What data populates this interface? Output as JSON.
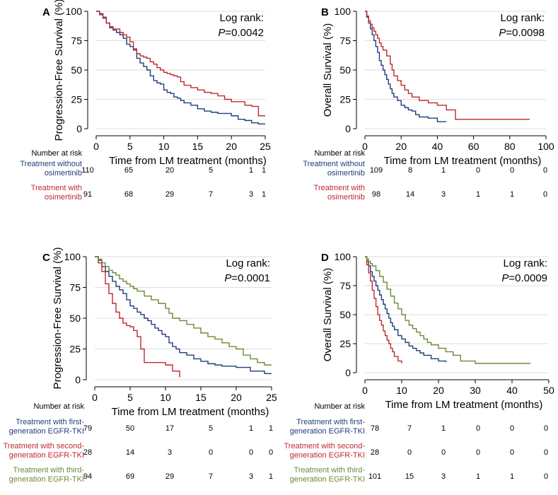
{
  "colors": {
    "blue": "#1f3d7a",
    "red": "#c0282d",
    "green": "#6b8a3a",
    "axis": "#000000",
    "grid": "#dddddd"
  },
  "number_at_risk_label": "Number at risk",
  "chart_data": [
    {
      "type": "line",
      "panel_label": "A",
      "ylabel": "Progression-Free Survival (%)",
      "xlabel": "Time from LM treatment (months)",
      "annotation": {
        "line1": "Log rank:",
        "p_label": "P",
        "p_value": "=0.0042"
      },
      "xlim": [
        0,
        25
      ],
      "ylim": [
        0,
        100
      ],
      "xticks": [
        0,
        5,
        10,
        15,
        20,
        25
      ],
      "yticks": [
        0,
        25,
        50,
        75,
        100
      ],
      "grid": true,
      "series": [
        {
          "name": "Treatment without osimertinib",
          "label_lines": [
            "Treatment without",
            "osimertinib"
          ],
          "color_key": "blue",
          "x": [
            0,
            0.5,
            1,
            1.5,
            2,
            2.5,
            3,
            3.5,
            4,
            4.5,
            5,
            5.5,
            6,
            6.5,
            7,
            7.5,
            8,
            8.5,
            9,
            9.5,
            10,
            10.5,
            11,
            11.5,
            12,
            12.5,
            13,
            14,
            15,
            16,
            17,
            18,
            20,
            21,
            22,
            23,
            24,
            25
          ],
          "y": [
            100,
            98,
            95,
            90,
            86,
            84,
            82,
            80,
            77,
            72,
            70,
            67,
            60,
            56,
            53,
            50,
            45,
            41,
            39,
            38,
            33,
            31,
            30,
            27,
            26,
            24,
            22,
            20,
            17,
            15,
            14,
            13,
            11,
            8,
            7,
            5,
            4,
            4
          ],
          "at_risk": [
            110,
            65,
            20,
            5,
            1,
            1
          ]
        },
        {
          "name": "Treatment with osimertinib",
          "label_lines": [
            "Treatment with",
            "osimertinib"
          ],
          "color_key": "red",
          "x": [
            0,
            0.5,
            1,
            1.5,
            2,
            2.5,
            3,
            3.5,
            4,
            4.5,
            5,
            5.5,
            6,
            6.5,
            7,
            7.5,
            8,
            8.5,
            9,
            9.5,
            10,
            10.5,
            11,
            11.5,
            12,
            12.5,
            13,
            14,
            15,
            16,
            17,
            18,
            19,
            20,
            22,
            23,
            24,
            25
          ],
          "y": [
            100,
            97,
            94,
            90,
            87,
            85,
            85,
            82,
            80,
            78,
            74,
            68,
            64,
            62,
            61,
            60,
            57,
            55,
            52,
            50,
            48,
            47,
            46,
            45,
            44,
            40,
            37,
            35,
            33,
            31,
            30,
            28,
            25,
            23,
            20,
            19,
            11,
            11
          ],
          "at_risk": [
            91,
            68,
            29,
            7,
            3,
            1
          ]
        }
      ]
    },
    {
      "type": "line",
      "panel_label": "B",
      "ylabel": "Overall Survival (%)",
      "xlabel": "Time from LM treatment (months)",
      "annotation": {
        "line1": "Log rank:",
        "p_label": "P",
        "p_value": "=0.0098"
      },
      "xlim": [
        0,
        100
      ],
      "ylim": [
        0,
        100
      ],
      "xticks": [
        0,
        20,
        40,
        60,
        80,
        100
      ],
      "yticks": [
        0,
        25,
        50,
        75,
        100
      ],
      "grid": true,
      "series": [
        {
          "name": "Treatment without osimertinib",
          "label_lines": [
            "Treatment without",
            "osimertinib"
          ],
          "color_key": "blue",
          "x": [
            0,
            1,
            2,
            3,
            4,
            5,
            6,
            7,
            8,
            9,
            10,
            11,
            12,
            13,
            14,
            15,
            16,
            18,
            20,
            22,
            24,
            26,
            28,
            30,
            35,
            40,
            45
          ],
          "y": [
            100,
            95,
            90,
            85,
            80,
            75,
            70,
            65,
            58,
            54,
            50,
            46,
            42,
            38,
            34,
            30,
            27,
            24,
            20,
            18,
            16,
            15,
            12,
            10,
            9,
            6,
            6
          ],
          "at_risk": [
            109,
            8,
            1,
            0,
            0,
            0
          ]
        },
        {
          "name": "Treatment with osimertinib",
          "label_lines": [
            "Treatment with",
            "osimertinib"
          ],
          "color_key": "red",
          "x": [
            0,
            1,
            2,
            3,
            4,
            5,
            6,
            7,
            8,
            9,
            10,
            12,
            14,
            15,
            16,
            18,
            20,
            22,
            24,
            26,
            30,
            35,
            40,
            45,
            50,
            60,
            70,
            80,
            91
          ],
          "y": [
            100,
            96,
            92,
            89,
            86,
            83,
            80,
            77,
            73,
            70,
            67,
            62,
            55,
            50,
            45,
            41,
            37,
            33,
            30,
            27,
            24,
            22,
            20,
            16,
            8,
            8,
            8,
            8,
            8
          ],
          "at_risk": [
            98,
            14,
            3,
            1,
            1,
            0
          ]
        }
      ]
    },
    {
      "type": "line",
      "panel_label": "C",
      "ylabel": "Progression-Free Survival (%)",
      "xlabel": "Time from LM treatment (months)",
      "annotation": {
        "line1": "Log rank:",
        "p_label": "P",
        "p_value": "=0.0001"
      },
      "xlim": [
        0,
        25
      ],
      "ylim": [
        0,
        100
      ],
      "xticks": [
        0,
        5,
        10,
        15,
        20,
        25
      ],
      "yticks": [
        0,
        25,
        50,
        75,
        100
      ],
      "grid": true,
      "series": [
        {
          "name": "Treatment with first-generation EGFR-TKI",
          "label_lines": [
            "Treatment with first-",
            "generation EGFR-TKI"
          ],
          "color_key": "blue",
          "x": [
            0,
            0.5,
            1,
            1.5,
            2,
            2.5,
            3,
            3.5,
            4,
            4.5,
            5,
            5.5,
            6,
            6.5,
            7,
            7.5,
            8,
            8.5,
            9,
            9.5,
            10,
            10.5,
            11,
            11.5,
            12,
            13,
            14,
            15,
            16,
            17,
            18,
            20,
            22,
            24,
            25
          ],
          "y": [
            100,
            97,
            92,
            88,
            84,
            80,
            76,
            73,
            70,
            65,
            60,
            58,
            55,
            53,
            50,
            48,
            45,
            42,
            40,
            37,
            35,
            30,
            27,
            25,
            22,
            20,
            17,
            15,
            13,
            12,
            11,
            10,
            7,
            5,
            5
          ],
          "at_risk": [
            79,
            50,
            17,
            5,
            1,
            1
          ]
        },
        {
          "name": "Treatment with second-generation EGFR-TKI",
          "label_lines": [
            "Treatment with second-",
            "generation EGFR-TKI"
          ],
          "color_key": "red",
          "x": [
            0,
            0.5,
            1,
            1.5,
            2,
            2.5,
            3,
            3.5,
            4,
            4.5,
            5,
            5.5,
            6,
            6.5,
            7,
            8,
            9,
            10,
            11,
            12
          ],
          "y": [
            100,
            95,
            88,
            78,
            70,
            62,
            55,
            50,
            46,
            44,
            43,
            40,
            35,
            25,
            14,
            14,
            14,
            12,
            7,
            2
          ],
          "at_risk": [
            28,
            14,
            3,
            0,
            0,
            0
          ]
        },
        {
          "name": "Treatment with third-generation EGFR-TKI",
          "label_lines": [
            "Treatment with third-",
            "generation EGFR-TKI"
          ],
          "color_key": "green",
          "x": [
            0,
            0.5,
            1,
            1.5,
            2,
            2.5,
            3,
            3.5,
            4,
            4.5,
            5,
            5.5,
            6,
            7,
            8,
            9,
            10,
            10.5,
            11,
            12,
            13,
            14,
            15,
            16,
            17,
            18,
            19,
            20,
            21,
            22,
            23,
            24,
            25
          ],
          "y": [
            100,
            98,
            95,
            92,
            89,
            87,
            85,
            82,
            80,
            78,
            76,
            74,
            72,
            68,
            65,
            62,
            58,
            54,
            50,
            48,
            45,
            42,
            38,
            35,
            33,
            30,
            27,
            25,
            20,
            17,
            14,
            12,
            12
          ],
          "at_risk": [
            94,
            69,
            29,
            7,
            3,
            1
          ]
        }
      ]
    },
    {
      "type": "line",
      "panel_label": "D",
      "ylabel": "Overall Survival (%)",
      "xlabel": "Time from LM treatment (months)",
      "annotation": {
        "line1": "Log rank:",
        "p_label": "P",
        "p_value": "=0.0009"
      },
      "xlim": [
        0,
        50
      ],
      "ylim": [
        0,
        100
      ],
      "xticks": [
        0,
        10,
        20,
        30,
        40,
        50
      ],
      "yticks": [
        0,
        25,
        50,
        75,
        100
      ],
      "grid": true,
      "series": [
        {
          "name": "Treatment with first-generation EGFR-TKI",
          "label_lines": [
            "Treatment with first-",
            "generation EGFR-TKI"
          ],
          "color_key": "blue",
          "x": [
            0,
            0.5,
            1,
            1.5,
            2,
            2.5,
            3,
            3.5,
            4,
            4.5,
            5,
            5.5,
            6,
            6.5,
            7,
            7.5,
            8,
            9,
            10,
            11,
            12,
            13,
            14,
            15,
            16,
            18,
            20,
            22
          ],
          "y": [
            100,
            96,
            92,
            87,
            83,
            79,
            75,
            71,
            67,
            63,
            59,
            55,
            51,
            47,
            43,
            40,
            37,
            32,
            29,
            26,
            23,
            21,
            19,
            17,
            15,
            12,
            10,
            9
          ],
          "at_risk": [
            78,
            7,
            1,
            0,
            0,
            0
          ]
        },
        {
          "name": "Treatment with second-generation EGFR-TKI",
          "label_lines": [
            "Treatment with second-",
            "generation EGFR-TKI"
          ],
          "color_key": "red",
          "x": [
            0,
            0.5,
            1,
            1.5,
            2,
            2.5,
            3,
            3.5,
            4,
            4.5,
            5,
            5.5,
            6,
            6.5,
            7,
            7.5,
            8,
            9,
            10
          ],
          "y": [
            100,
            93,
            86,
            79,
            71,
            64,
            57,
            50,
            45,
            41,
            36,
            32,
            28,
            25,
            21,
            18,
            14,
            10,
            8
          ],
          "at_risk": [
            28,
            0,
            0,
            0,
            0,
            0
          ]
        },
        {
          "name": "Treatment with third-generation EGFR-TKI",
          "label_lines": [
            "Treatment with third-",
            "generation EGFR-TKI"
          ],
          "color_key": "green",
          "x": [
            0,
            0.5,
            1,
            1.5,
            2,
            3,
            4,
            5,
            6,
            7,
            8,
            9,
            10,
            11,
            12,
            13,
            14,
            15,
            16,
            17,
            18,
            20,
            22,
            24,
            26,
            30,
            35,
            40,
            45
          ],
          "y": [
            100,
            98,
            96,
            94,
            92,
            88,
            83,
            78,
            72,
            66,
            60,
            55,
            50,
            45,
            41,
            38,
            35,
            32,
            29,
            26,
            24,
            21,
            18,
            15,
            10,
            8,
            8,
            8,
            8
          ],
          "at_risk": [
            101,
            15,
            3,
            1,
            1,
            0
          ]
        }
      ]
    }
  ]
}
